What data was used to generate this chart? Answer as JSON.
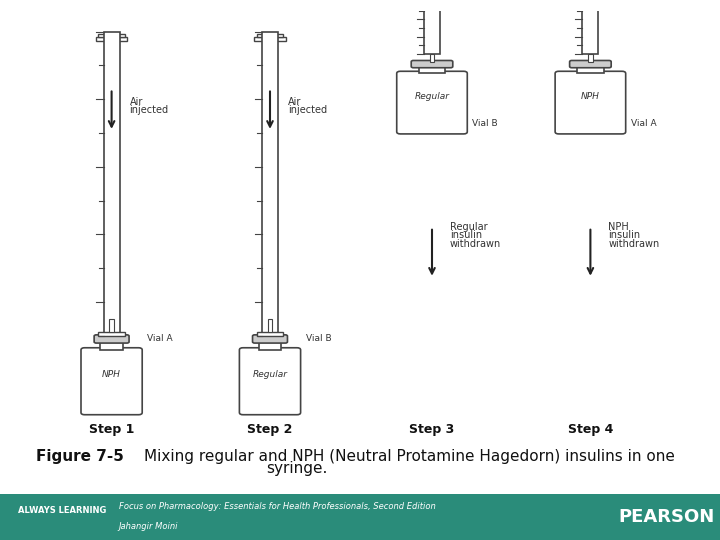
{
  "bg_color": "#ffffff",
  "footer_bg_color": "#2a8c7a",
  "footer_text_color": "#ffffff",
  "outline_color": "#444444",
  "liquid_color": "#fffacd",
  "arrow_color": "#222222",
  "step_labels": [
    "Step 1",
    "Step 2",
    "Step 3",
    "Step 4"
  ],
  "title_bold": "Figure 7-5",
  "title_rest": "  Mixing regular and NPH (Neutral Protamine Hagedorn) insulins in one\n               syringe.",
  "always_learning": "ALWAYS LEARNING",
  "book_line1": "Focus on Pharmacology: Essentials for Health Professionals, Second Edition",
  "book_line2": "Jahangir Moini",
  "pearson": "PEARSON",
  "s1x": 0.155,
  "s2x": 0.375,
  "s3x": 0.6,
  "s4x": 0.82
}
